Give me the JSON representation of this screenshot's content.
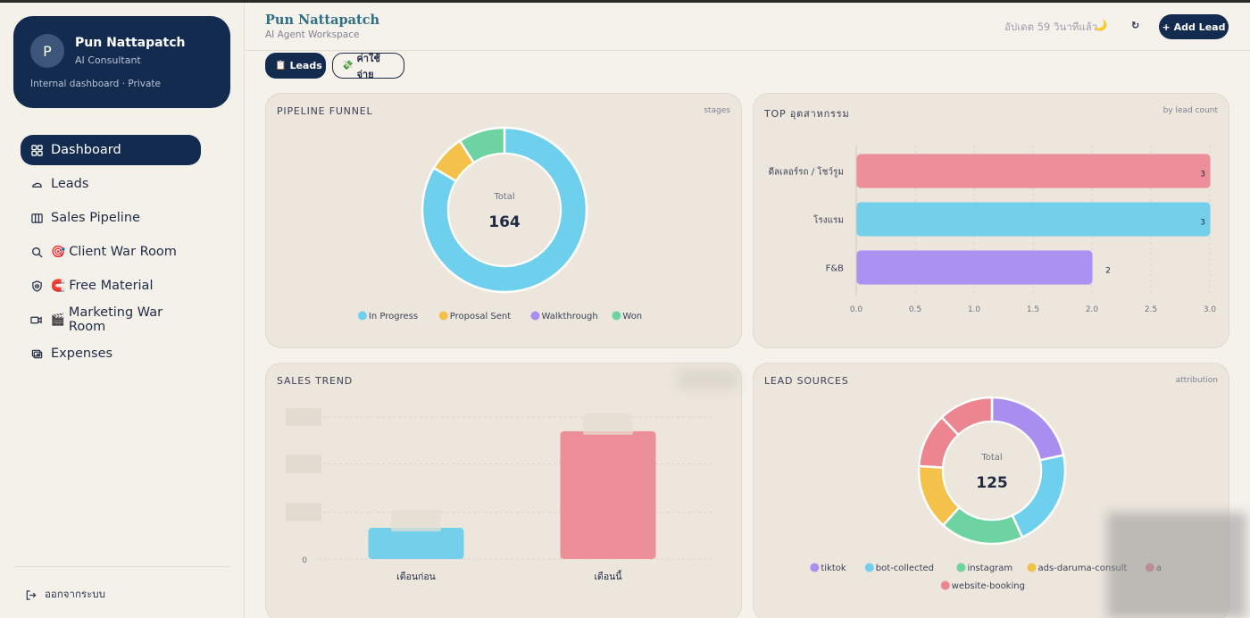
{
  "profile": {
    "initial": "P",
    "name": "Pun Nattapatch",
    "role": "AI Consultant",
    "note": "Internal dashboard · Private"
  },
  "nav": {
    "items": [
      {
        "label": "Dashboard",
        "emoji": "",
        "icon": "grid-icon",
        "active": true
      },
      {
        "label": "Leads",
        "emoji": "",
        "icon": "cloud-icon",
        "active": false
      },
      {
        "label": "Sales Pipeline",
        "emoji": "",
        "icon": "columns-icon",
        "active": false
      },
      {
        "label": "Client War Room",
        "emoji": "🎯",
        "icon": "search-icon",
        "active": false
      },
      {
        "label": "Free Material",
        "emoji": "🧲",
        "icon": "shield-icon",
        "active": false
      },
      {
        "label": "Marketing War Room",
        "emoji": "🎬",
        "icon": "video-icon",
        "active": false
      },
      {
        "label": "Expenses",
        "emoji": "",
        "icon": "wallet-icon",
        "active": false
      }
    ],
    "logout": "ออกจากระบบ"
  },
  "header": {
    "title": "Pun Nattapatch",
    "subtitle": "AI Agent Workspace",
    "updated": "อัปเดต 59 วินาทีแล้ว",
    "moon_icon": "🌙",
    "refresh_icon": "↻",
    "add_lead": "+ Add Lead"
  },
  "tabs": {
    "leads": {
      "emoji": "📋",
      "label": "Leads"
    },
    "expenses": {
      "emoji": "💸",
      "label": "ค่าใช้จ่าย"
    }
  },
  "cards": {
    "funnel": {
      "title": "PIPELINE FUNNEL",
      "tag": "stages"
    },
    "industry": {
      "title": "TOP อุตสาหกรรม",
      "tag": "by lead count"
    },
    "trend": {
      "title": "SALES TREND",
      "tag": ""
    },
    "sources": {
      "title": "LEAD SOURCES",
      "tag": "attribution"
    }
  },
  "chart_data": [
    {
      "id": "funnel",
      "type": "pie",
      "center_label": "Total",
      "center_value": "164",
      "labels": [
        "In Progress",
        "Proposal Sent",
        "Walkthrough",
        "Won"
      ],
      "values": [
        137,
        12,
        0,
        15
      ],
      "colors": [
        "#6fd0ee",
        "#f4c24a",
        "#a98ef0",
        "#6dd3a0"
      ],
      "legend": "bottom"
    },
    {
      "id": "industry",
      "type": "bar",
      "orientation": "horizontal",
      "categories": [
        "ดีลเลอร์รถ / โชว์รูม",
        "โรงแรม",
        "F&B"
      ],
      "values": [
        3,
        3,
        2
      ],
      "colors": [
        "#ec8f98",
        "#74d0ea",
        "#ab92f2"
      ],
      "xlim": [
        0,
        3
      ],
      "xticks": [
        "0.0",
        "0.5",
        "1.0",
        "1.5",
        "2.0",
        "2.5",
        "3.0"
      ],
      "grid": true
    },
    {
      "id": "trend",
      "type": "bar",
      "categories": [
        "เดือนก่อน",
        "เดือนนี้"
      ],
      "values": [
        0.22,
        0.9
      ],
      "colors": [
        "#74d0ea",
        "#ec8f98"
      ],
      "ylim": [
        0,
        1
      ],
      "yticks": [
        "0"
      ],
      "grid": true
    },
    {
      "id": "sources",
      "type": "pie",
      "center_label": "Total",
      "center_value": "125",
      "labels": [
        "tiktok",
        "bot-collected",
        "instagram",
        "ads-daruma-consult",
        "a",
        "website-booking"
      ],
      "values": [
        27,
        27,
        23,
        18,
        15,
        15
      ],
      "colors": [
        "#a98ef0",
        "#6fd0ee",
        "#6dd3a0",
        "#f4c24a",
        "#ec8590",
        "#ec8590"
      ],
      "legend": "bottom"
    }
  ]
}
